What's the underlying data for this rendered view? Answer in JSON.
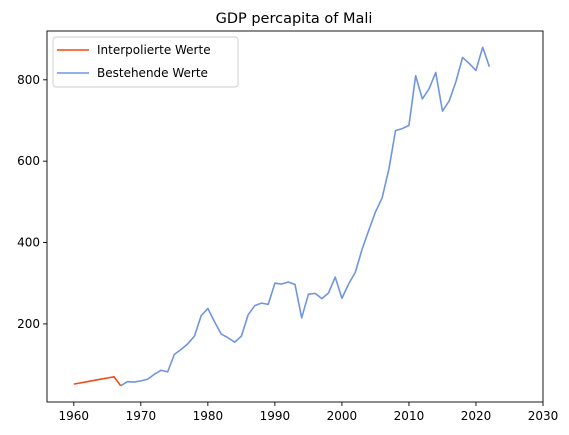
{
  "chart_data": {
    "type": "line",
    "title": "GDP percapita of Mali",
    "xlabel": "",
    "ylabel": "",
    "xlim": [
      1956,
      2030
    ],
    "ylim": [
      8,
      920
    ],
    "xticks": [
      1960,
      1970,
      1980,
      1990,
      2000,
      2010,
      2020,
      2030
    ],
    "yticks": [
      200,
      400,
      600,
      800
    ],
    "grid": false,
    "legend_position": "top-left",
    "series": [
      {
        "name": "Interpolierte Werte",
        "color": "#f24a17",
        "x": [
          1960,
          1961,
          1962,
          1963,
          1964,
          1965,
          1966,
          1967
        ],
        "y": [
          52,
          55,
          58,
          61,
          64,
          67,
          70,
          48
        ]
      },
      {
        "name": "Bestehende Werte",
        "color": "#6f95e2",
        "x": [
          1967,
          1968,
          1969,
          1970,
          1971,
          1972,
          1973,
          1974,
          1975,
          1976,
          1977,
          1978,
          1979,
          1980,
          1981,
          1982,
          1983,
          1984,
          1985,
          1986,
          1987,
          1988,
          1989,
          1990,
          1991,
          1992,
          1993,
          1994,
          1995,
          1996,
          1997,
          1998,
          1999,
          2000,
          2001,
          2002,
          2003,
          2004,
          2005,
          2006,
          2007,
          2008,
          2009,
          2010,
          2011,
          2012,
          2013,
          2014,
          2015,
          2016,
          2017,
          2018,
          2019,
          2020,
          2021,
          2022
        ],
        "y": [
          48,
          58,
          57,
          60,
          64,
          76,
          86,
          82,
          125,
          137,
          151,
          170,
          220,
          238,
          205,
          175,
          166,
          155,
          170,
          222,
          245,
          251,
          248,
          300,
          298,
          303,
          297,
          215,
          273,
          275,
          262,
          276,
          315,
          263,
          298,
          327,
          383,
          430,
          475,
          510,
          580,
          675,
          680,
          688,
          810,
          753,
          778,
          818,
          723,
          748,
          795,
          855,
          840,
          823,
          880,
          832
        ]
      }
    ]
  }
}
